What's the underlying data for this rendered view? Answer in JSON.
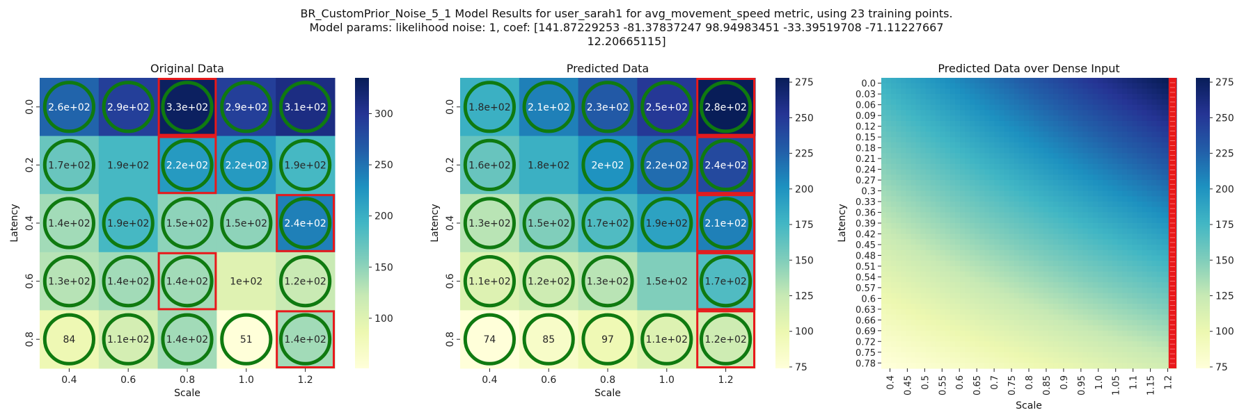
{
  "figure": {
    "title_lines": [
      "BR_CustomPrior_Noise_5_1 Model Results for user_sarah1 for avg_movement_speed metric, using 23 training points.",
      "Model params: likelihood noise: 1, coef: [141.87229253 -81.37837247  98.94983451 -33.39519708 -71.11227667",
      "12.20665115]"
    ]
  },
  "colors": {
    "ring": "#0f7a10",
    "highlight": "#e8191b",
    "cmap": [
      "#ffffd9",
      "#edf8b1",
      "#c7e9b4",
      "#7fcdbb",
      "#41b6c4",
      "#1d91c0",
      "#225ea8",
      "#253494",
      "#081d58"
    ]
  },
  "chart_data": [
    {
      "type": "heatmap",
      "title": "Original Data",
      "xlabel": "Scale",
      "ylabel": "Latency",
      "x": [
        "0.4",
        "0.6",
        "0.8",
        "1.0",
        "1.2"
      ],
      "y": [
        "0.0",
        "0.2",
        "0.4",
        "0.6",
        "0.8"
      ],
      "values": [
        [
          260,
          290,
          330,
          290,
          310
        ],
        [
          170,
          190,
          220,
          220,
          190
        ],
        [
          140,
          190,
          150,
          150,
          240
        ],
        [
          130,
          140,
          140,
          100,
          120
        ],
        [
          84,
          110,
          140,
          51,
          140
        ]
      ],
      "labels": [
        [
          "2.6e+02",
          "2.9e+02",
          "3.3e+02",
          "2.9e+02",
          "3.1e+02"
        ],
        [
          "1.7e+02",
          "1.9e+02",
          "2.2e+02",
          "2.2e+02",
          "1.9e+02"
        ],
        [
          "1.4e+02",
          "1.9e+02",
          "1.5e+02",
          "1.5e+02",
          "2.4e+02"
        ],
        [
          "1.3e+02",
          "1.4e+02",
          "1.4e+02",
          "1e+02",
          "1.2e+02"
        ],
        [
          "84",
          "1.1e+02",
          "1.4e+02",
          "51",
          "1.4e+02"
        ]
      ],
      "circled": [
        [
          1,
          1,
          1,
          1,
          1
        ],
        [
          1,
          0,
          1,
          1,
          1
        ],
        [
          1,
          1,
          1,
          1,
          1
        ],
        [
          1,
          1,
          1,
          0,
          1
        ],
        [
          1,
          1,
          1,
          1,
          1
        ]
      ],
      "highlighted": [
        [
          0,
          2
        ],
        [
          1,
          2
        ],
        [
          2,
          4
        ],
        [
          3,
          2
        ],
        [
          4,
          4
        ]
      ],
      "colorbar": {
        "vmin": 51,
        "vmax": 335,
        "ticks": [
          100,
          150,
          200,
          250,
          300
        ]
      }
    },
    {
      "type": "heatmap",
      "title": "Predicted Data",
      "xlabel": "Scale",
      "ylabel": "Latency",
      "x": [
        "0.4",
        "0.6",
        "0.8",
        "1.0",
        "1.2"
      ],
      "y": [
        "0.0",
        "0.2",
        "0.4",
        "0.6",
        "0.8"
      ],
      "values": [
        [
          180,
          210,
          230,
          250,
          280
        ],
        [
          160,
          180,
          200,
          220,
          240
        ],
        [
          130,
          150,
          170,
          190,
          210
        ],
        [
          110,
          120,
          130,
          150,
          170
        ],
        [
          74,
          85,
          97,
          110,
          120
        ]
      ],
      "labels": [
        [
          "1.8e+02",
          "2.1e+02",
          "2.3e+02",
          "2.5e+02",
          "2.8e+02"
        ],
        [
          "1.6e+02",
          "1.8e+02",
          "2e+02",
          "2.2e+02",
          "2.4e+02"
        ],
        [
          "1.3e+02",
          "1.5e+02",
          "1.7e+02",
          "1.9e+02",
          "2.1e+02"
        ],
        [
          "1.1e+02",
          "1.2e+02",
          "1.3e+02",
          "1.5e+02",
          "1.7e+02"
        ],
        [
          "74",
          "85",
          "97",
          "1.1e+02",
          "1.2e+02"
        ]
      ],
      "circled": [
        [
          1,
          1,
          1,
          1,
          1
        ],
        [
          1,
          0,
          1,
          1,
          1
        ],
        [
          1,
          1,
          1,
          1,
          1
        ],
        [
          1,
          1,
          1,
          0,
          1
        ],
        [
          1,
          1,
          1,
          1,
          1
        ]
      ],
      "highlighted": [
        [
          0,
          4
        ],
        [
          1,
          4
        ],
        [
          2,
          4
        ],
        [
          3,
          4
        ],
        [
          4,
          4
        ]
      ],
      "colorbar": {
        "vmin": 74,
        "vmax": 278,
        "ticks": [
          75,
          100,
          125,
          150,
          175,
          200,
          225,
          250,
          275
        ]
      }
    },
    {
      "type": "heatmap",
      "title": "Predicted Data over Dense Input",
      "xlabel": "Scale",
      "ylabel": "Latency",
      "x": [
        "0.4",
        "0.45",
        "0.5",
        "0.55",
        "0.6",
        "0.65",
        "0.7",
        "0.75",
        "0.8",
        "0.85",
        "0.9",
        "0.95",
        "1.0",
        "1.05",
        "1.1",
        "1.15",
        "1.2"
      ],
      "y": [
        "0.0",
        "0.03",
        "0.06",
        "0.09",
        "0.12",
        "0.15",
        "0.18",
        "0.21",
        "0.24",
        "0.27",
        "0.3",
        "0.33",
        "0.36",
        "0.39",
        "0.42",
        "0.45",
        "0.48",
        "0.51",
        "0.54",
        "0.57",
        "0.6",
        "0.63",
        "0.66",
        "0.69",
        "0.72",
        "0.75",
        "0.78"
      ],
      "z_corners": {
        "top_left": 180,
        "top_right": 280,
        "bottom_left": 74,
        "bottom_right": 120
      },
      "highlighted_column": "1.2",
      "colorbar": {
        "vmin": 74,
        "vmax": 278,
        "ticks": [
          75,
          100,
          125,
          150,
          175,
          200,
          225,
          250,
          275
        ]
      }
    }
  ]
}
